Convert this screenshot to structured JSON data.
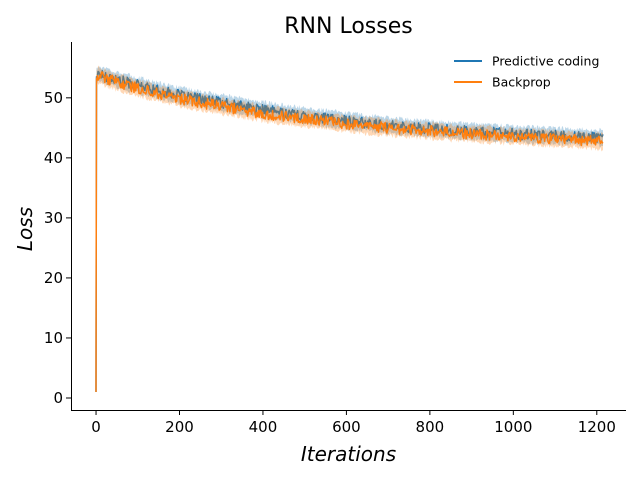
{
  "chart_data": {
    "type": "line",
    "title": "RNN Losses",
    "xlabel": "Iterations",
    "ylabel": "Loss",
    "xlim": [
      -60,
      1270
    ],
    "ylim": [
      -2,
      59.3
    ],
    "xticks": [
      0,
      200,
      400,
      600,
      800,
      1000,
      1200
    ],
    "yticks": [
      0,
      10,
      20,
      30,
      40,
      50
    ],
    "grid": false,
    "legend_position": "top-right",
    "series": [
      {
        "name": "Predictive coding",
        "color": "#1f77b4",
        "x": [
          0,
          1,
          5,
          25,
          50,
          100,
          150,
          200,
          250,
          300,
          350,
          400,
          450,
          500,
          550,
          600,
          650,
          700,
          750,
          800,
          850,
          900,
          950,
          1000,
          1050,
          1100,
          1150,
          1200,
          1215
        ],
        "y": [
          1.0,
          53.5,
          54.0,
          53.6,
          53.0,
          52.1,
          51.2,
          50.4,
          49.8,
          49.2,
          48.6,
          48.0,
          47.5,
          47.0,
          46.6,
          46.2,
          45.8,
          45.4,
          45.1,
          44.9,
          44.6,
          44.4,
          44.2,
          44.0,
          43.8,
          43.7,
          43.5,
          43.4,
          43.3
        ]
      },
      {
        "name": "Backprop",
        "color": "#ff7f0e",
        "x": [
          0,
          1,
          5,
          25,
          50,
          100,
          150,
          200,
          250,
          300,
          350,
          400,
          450,
          500,
          550,
          600,
          650,
          700,
          750,
          800,
          850,
          900,
          950,
          1000,
          1050,
          1100,
          1150,
          1200,
          1215
        ],
        "y": [
          1.0,
          53.2,
          53.8,
          53.2,
          52.6,
          51.6,
          50.7,
          49.9,
          49.2,
          48.6,
          48.0,
          47.4,
          46.9,
          46.5,
          46.1,
          45.7,
          45.3,
          45.0,
          44.7,
          44.5,
          44.2,
          44.0,
          43.8,
          43.6,
          43.4,
          43.2,
          43.0,
          42.8,
          42.7
        ]
      }
    ]
  }
}
